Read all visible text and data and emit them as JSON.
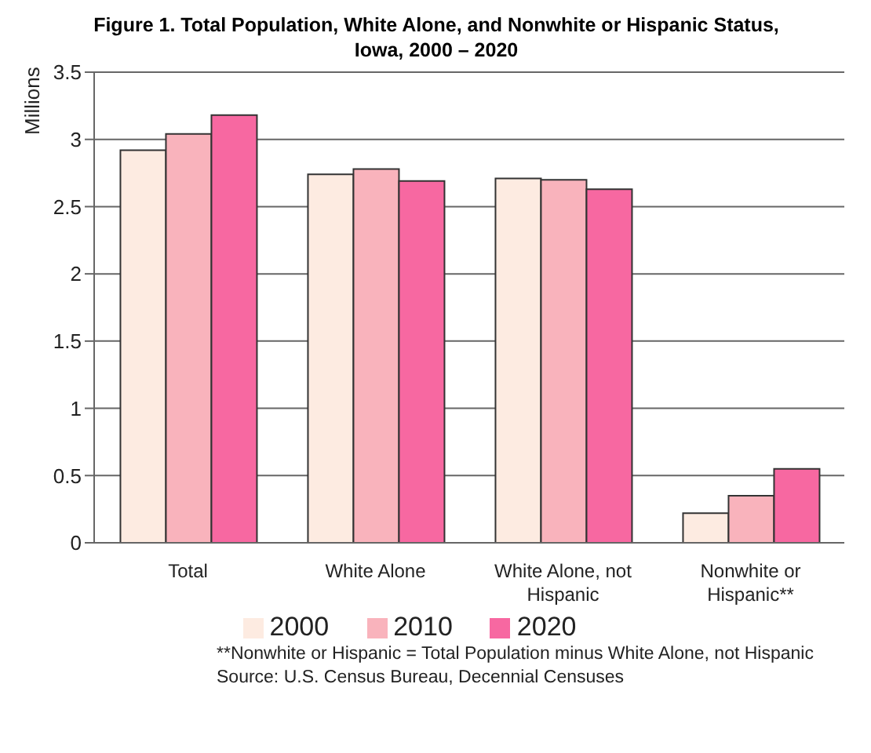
{
  "chart_data": {
    "type": "bar",
    "title": "Figure 1. Total Population, White Alone, and Nonwhite or Hispanic Status, Iowa, 2000 – 2020",
    "ylabel": "Millions",
    "categories": [
      "Total",
      "White Alone",
      "White Alone, not Hispanic",
      "Nonwhite or Hispanic**"
    ],
    "series": [
      {
        "name": "2000",
        "color": "#fdebe1",
        "values": [
          2.92,
          2.74,
          2.71,
          0.22
        ]
      },
      {
        "name": "2010",
        "color": "#f9b3bc",
        "values": [
          3.04,
          2.78,
          2.7,
          0.35
        ]
      },
      {
        "name": "2020",
        "color": "#f768a1",
        "values": [
          3.18,
          2.69,
          2.63,
          0.55
        ]
      }
    ],
    "ylim": [
      0,
      3.5
    ],
    "yticks": [
      0,
      0.5,
      1,
      1.5,
      2,
      2.5,
      3,
      3.5
    ],
    "grid": "y",
    "legend": "bottom",
    "annotations": [
      "**Nonwhite or Hispanic = Total Population minus White Alone, not Hispanic",
      "Source: U.S. Census Bureau, Decennial Censuses"
    ]
  }
}
